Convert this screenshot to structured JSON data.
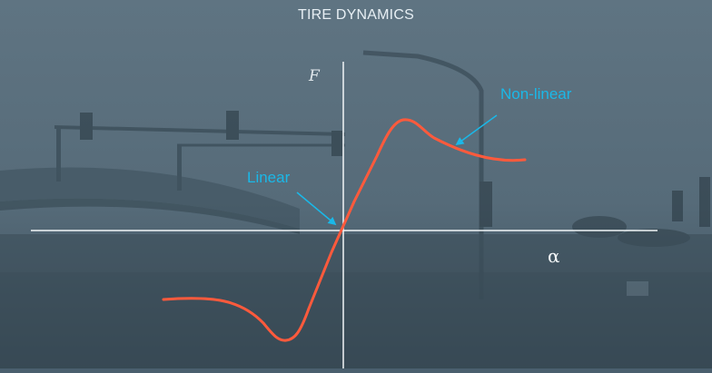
{
  "slide": {
    "title": "TIRE DYNAMICS",
    "y_axis_label": "F",
    "x_axis_label": "α"
  },
  "annotations": {
    "linear": "Linear",
    "nonlinear": "Non-linear"
  },
  "colors": {
    "curve": "#ff5a3c",
    "annotation": "#1ab8e8",
    "axis": "#f2f5f7",
    "background": "#4a5f6e"
  }
}
